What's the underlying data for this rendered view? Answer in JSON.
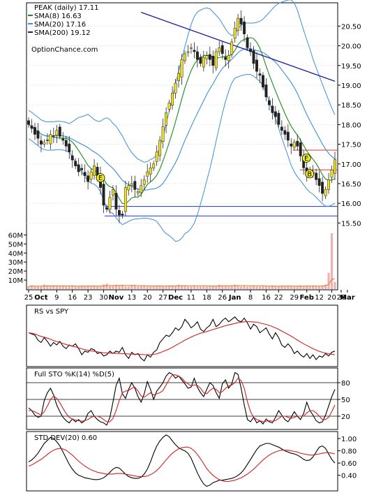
{
  "colors": {
    "sma8": "#1a8c1a",
    "sma20": "#3a8fd9",
    "sma200": "#1a1a9c",
    "upper_band": "#f0e030",
    "candle_up": "#f0e020",
    "candle_down": "#222222",
    "volume": "#f0b0b0",
    "red_line": "#d42020",
    "support": "#2233cc",
    "resistance": "#e03030",
    "earnings": "#f3f01a",
    "price_grid": "#000000"
  },
  "chart_data": [
    {
      "type": "candlestick",
      "title": "PEAK (daily) 17.11",
      "watermark": "OptionChance.com",
      "legend": [
        {
          "label": "SMA(8) 16.63",
          "color": "#1a8c1a"
        },
        {
          "label": "SMA(20) 17.16",
          "color": "#3a8fd9"
        },
        {
          "label": "SMA(200) 19.12",
          "color": "#1a1a9c"
        }
      ],
      "legend_position": "top-left",
      "ylim": [
        15.4,
        20.95
      ],
      "yticks": [
        "15.50",
        "16.00",
        "16.50",
        "17.00",
        "17.50",
        "18.00",
        "18.50",
        "19.00",
        "19.50",
        "20.00",
        "20.50"
      ],
      "close": [
        18.0,
        17.9,
        17.75,
        17.65,
        17.5,
        17.55,
        17.6,
        17.75,
        17.7,
        17.85,
        17.7,
        17.6,
        17.45,
        17.3,
        17.1,
        16.95,
        16.8,
        16.85,
        16.7,
        16.55,
        16.8,
        16.95,
        16.7,
        16.4,
        15.95,
        15.85,
        16.15,
        16.35,
        15.85,
        15.7,
        15.7,
        16.4,
        16.45,
        16.5,
        16.35,
        16.3,
        16.45,
        16.6,
        16.8,
        16.9,
        17.0,
        17.3,
        17.6,
        17.95,
        18.3,
        18.55,
        18.8,
        19.05,
        19.3,
        19.65,
        19.8,
        19.85,
        19.95,
        19.85,
        19.65,
        19.55,
        19.7,
        19.75,
        19.65,
        19.5,
        19.85,
        19.95,
        19.8,
        19.65,
        19.75,
        20.1,
        20.45,
        20.7,
        20.55,
        20.3,
        19.95,
        19.85,
        19.55,
        19.35,
        19.25,
        18.95,
        18.7,
        18.5,
        18.3,
        18.2,
        18.0,
        17.85,
        17.75,
        17.6,
        17.45,
        17.55,
        17.45,
        17.2,
        16.9,
        16.75,
        16.85,
        16.8,
        16.6,
        16.45,
        16.25,
        16.35,
        16.6,
        16.85,
        17.11
      ],
      "sma200_range": [
        20.85,
        19.1
      ],
      "support_lines": [
        15.92,
        15.68
      ],
      "resistance_lines": [
        17.35,
        16.85
      ],
      "earnings_markers": [
        {
          "label": "E"
        },
        {
          "label": "E"
        },
        {
          "label": "B"
        }
      ]
    },
    {
      "type": "bar",
      "title": "",
      "series_name": "volume",
      "yticks": [
        "60M",
        "50M",
        "40M",
        "30M",
        "20M",
        "10M"
      ],
      "ylim": [
        0,
        65
      ],
      "values": [
        3,
        4,
        3,
        3,
        3,
        5,
        4,
        3,
        4,
        3,
        3,
        4,
        3,
        3,
        4,
        3,
        3,
        4,
        3,
        4,
        3,
        4,
        3,
        3,
        5,
        6,
        4,
        4,
        5,
        4,
        4,
        3,
        3,
        4,
        4,
        3,
        4,
        4,
        3,
        3,
        3,
        4,
        4,
        3,
        3,
        4,
        4,
        3,
        5,
        4,
        4,
        3,
        3,
        4,
        3,
        3,
        4,
        3,
        3,
        4,
        3,
        5,
        4,
        4,
        3,
        4,
        5,
        4,
        3,
        4,
        3,
        3,
        4,
        3,
        3,
        4,
        3,
        3,
        4,
        3,
        3,
        4,
        3,
        4,
        3,
        3,
        3,
        4,
        3,
        4,
        3,
        4,
        3,
        3,
        4,
        5,
        18,
        62,
        8
      ]
    },
    {
      "type": "line",
      "title": "RS vs SPY",
      "series_name": "RS",
      "values": [
        0.3,
        0.25,
        0.2,
        0.0,
        -0.1,
        0.1,
        -0.05,
        -0.25,
        -0.1,
        -0.2,
        -0.05,
        -0.25,
        -0.35,
        -0.2,
        -0.25,
        -0.15,
        -0.35,
        -0.6,
        -0.45,
        -0.5,
        -0.35,
        -0.4,
        -0.55,
        -0.5,
        -0.65,
        -0.6,
        -0.45,
        -0.55,
        -0.45,
        -0.5,
        -0.3,
        -0.6,
        -0.75,
        -0.5,
        -0.6,
        -0.55,
        -0.75,
        -0.85,
        -0.6,
        -0.7,
        -0.5,
        -0.4,
        -0.1,
        0.05,
        0.2,
        0.15,
        0.3,
        0.5,
        0.4,
        0.55,
        0.85,
        0.7,
        0.5,
        0.6,
        0.75,
        0.45,
        0.35,
        0.5,
        0.6,
        0.85,
        0.55,
        0.65,
        0.8,
        0.9,
        0.75,
        0.85,
        0.95,
        0.8,
        0.75,
        0.9,
        0.7,
        0.45,
        0.65,
        0.55,
        0.3,
        0.4,
        0.5,
        0.25,
        0.05,
        0.3,
        0.1,
        -0.2,
        -0.3,
        -0.15,
        -0.3,
        -0.55,
        -0.45,
        -0.6,
        -0.7,
        -0.55,
        -0.75,
        -0.6,
        -0.8,
        -0.65,
        -0.7,
        -0.55,
        -0.65,
        -0.5,
        -0.45
      ],
      "signal": [
        0.3,
        0.28,
        0.25,
        0.2,
        0.15,
        0.12,
        0.08,
        0.03,
        -0.02,
        -0.06,
        -0.1,
        -0.14,
        -0.18,
        -0.22,
        -0.25,
        -0.28,
        -0.32,
        -0.36,
        -0.39,
        -0.42,
        -0.44,
        -0.46,
        -0.48,
        -0.5,
        -0.52,
        -0.53,
        -0.53,
        -0.54,
        -0.54,
        -0.55,
        -0.55,
        -0.56,
        -0.57,
        -0.58,
        -0.58,
        -0.58,
        -0.59,
        -0.6,
        -0.6,
        -0.6,
        -0.59,
        -0.56,
        -0.52,
        -0.47,
        -0.42,
        -0.36,
        -0.3,
        -0.22,
        -0.15,
        -0.08,
        0.0,
        0.06,
        0.12,
        0.18,
        0.23,
        0.28,
        0.31,
        0.35,
        0.39,
        0.43,
        0.47,
        0.51,
        0.55,
        0.59,
        0.62,
        0.65,
        0.68,
        0.71,
        0.73,
        0.75,
        0.76,
        0.75,
        0.74,
        0.73,
        0.7,
        0.67,
        0.64,
        0.6,
        0.55,
        0.5,
        0.44,
        0.37,
        0.3,
        0.23,
        0.16,
        0.08,
        0.0,
        -0.08,
        -0.15,
        -0.22,
        -0.29,
        -0.35,
        -0.41,
        -0.46,
        -0.5,
        -0.53,
        -0.56,
        -0.58,
        -0.6
      ],
      "ylim": [
        -1.0,
        1.0
      ]
    },
    {
      "type": "line",
      "title": "Full STO %K(14) %D(5)",
      "yticks": [
        "80",
        "50",
        "20"
      ],
      "ylim": [
        0,
        100
      ],
      "k": [
        35,
        30,
        22,
        18,
        20,
        48,
        62,
        70,
        58,
        40,
        28,
        18,
        12,
        8,
        15,
        10,
        14,
        8,
        12,
        25,
        30,
        20,
        14,
        10,
        8,
        4,
        18,
        45,
        75,
        88,
        60,
        52,
        68,
        80,
        70,
        55,
        45,
        60,
        82,
        68,
        50,
        65,
        72,
        80,
        92,
        98,
        95,
        88,
        92,
        85,
        78,
        70,
        72,
        88,
        72,
        62,
        55,
        68,
        80,
        75,
        62,
        52,
        78,
        85,
        70,
        78,
        98,
        95,
        70,
        40,
        14,
        10,
        18,
        8,
        12,
        6,
        15,
        10,
        8,
        18,
        30,
        22,
        14,
        10,
        18,
        28,
        20,
        14,
        25,
        45,
        30,
        22,
        12,
        8,
        10,
        22,
        38,
        55,
        68
      ],
      "d": [
        30,
        30,
        28,
        25,
        22,
        28,
        38,
        50,
        56,
        52,
        44,
        34,
        25,
        18,
        15,
        13,
        12,
        11,
        12,
        14,
        18,
        20,
        20,
        18,
        14,
        10,
        10,
        16,
        30,
        48,
        62,
        65,
        66,
        70,
        72,
        65,
        56,
        54,
        58,
        62,
        58,
        60,
        62,
        66,
        76,
        86,
        94,
        94,
        92,
        88,
        82,
        78,
        74,
        76,
        75,
        70,
        62,
        60,
        66,
        70,
        68,
        62,
        64,
        70,
        74,
        76,
        80,
        88,
        84,
        70,
        46,
        28,
        18,
        14,
        12,
        10,
        11,
        12,
        11,
        12,
        16,
        20,
        20,
        18,
        16,
        18,
        20,
        20,
        20,
        26,
        30,
        30,
        26,
        20,
        14,
        14,
        18,
        28,
        40
      ]
    },
    {
      "type": "line",
      "title": "STD DEV(20) 0.60",
      "yticks": [
        "1.00",
        "0.80",
        "0.60",
        "0.40"
      ],
      "ylim": [
        0.18,
        1.08
      ],
      "values": [
        0.62,
        0.65,
        0.7,
        0.76,
        0.84,
        0.92,
        0.97,
        1.02,
        1.0,
        0.95,
        0.88,
        0.78,
        0.68,
        0.58,
        0.5,
        0.44,
        0.4,
        0.38,
        0.36,
        0.35,
        0.34,
        0.33,
        0.33,
        0.34,
        0.36,
        0.4,
        0.45,
        0.5,
        0.53,
        0.52,
        0.47,
        0.42,
        0.38,
        0.36,
        0.35,
        0.35,
        0.37,
        0.42,
        0.5,
        0.62,
        0.76,
        0.88,
        0.96,
        1.02,
        1.06,
        1.03,
        0.96,
        0.9,
        0.85,
        0.82,
        0.8,
        0.76,
        0.68,
        0.56,
        0.44,
        0.34,
        0.26,
        0.22,
        0.24,
        0.28,
        0.3,
        0.32,
        0.32,
        0.33,
        0.34,
        0.35,
        0.37,
        0.4,
        0.44,
        0.5,
        0.58,
        0.66,
        0.74,
        0.82,
        0.88,
        0.9,
        0.92,
        0.92,
        0.9,
        0.88,
        0.86,
        0.83,
        0.8,
        0.78,
        0.76,
        0.75,
        0.73,
        0.7,
        0.66,
        0.64,
        0.65,
        0.7,
        0.78,
        0.86,
        0.88,
        0.84,
        0.75,
        0.66,
        0.6
      ],
      "signal": [
        0.55,
        0.57,
        0.6,
        0.63,
        0.66,
        0.7,
        0.74,
        0.78,
        0.81,
        0.83,
        0.84,
        0.83,
        0.81,
        0.77,
        0.73,
        0.68,
        0.63,
        0.59,
        0.55,
        0.52,
        0.49,
        0.47,
        0.45,
        0.44,
        0.43,
        0.42,
        0.42,
        0.42,
        0.43,
        0.43,
        0.43,
        0.42,
        0.41,
        0.4,
        0.39,
        0.38,
        0.38,
        0.38,
        0.39,
        0.41,
        0.44,
        0.48,
        0.53,
        0.59,
        0.65,
        0.71,
        0.76,
        0.8,
        0.83,
        0.85,
        0.86,
        0.86,
        0.84,
        0.8,
        0.74,
        0.67,
        0.59,
        0.51,
        0.45,
        0.4,
        0.36,
        0.33,
        0.31,
        0.3,
        0.3,
        0.31,
        0.32,
        0.34,
        0.36,
        0.39,
        0.42,
        0.46,
        0.5,
        0.55,
        0.6,
        0.65,
        0.69,
        0.73,
        0.76,
        0.78,
        0.8,
        0.81,
        0.81,
        0.81,
        0.8,
        0.79,
        0.78,
        0.76,
        0.75,
        0.74,
        0.73,
        0.73,
        0.74,
        0.75,
        0.76,
        0.77,
        0.77,
        0.76,
        0.75
      ]
    }
  ],
  "x_axis": {
    "labels": [
      "25",
      "Oct",
      "9",
      "16",
      "23",
      "30",
      "Nov",
      "13",
      "20",
      "27",
      "Dec",
      "11",
      "18",
      "26",
      "Jan",
      "8",
      "16",
      "22",
      "29",
      "Feb",
      "12",
      "20",
      "26",
      "Mar"
    ],
    "bold": [
      "Oct",
      "Nov",
      "Dec",
      "Jan",
      "Feb",
      "Mar"
    ],
    "index": [
      0,
      4,
      9,
      14,
      19,
      24,
      28,
      33,
      38,
      43,
      47,
      52,
      57,
      62,
      66,
      71,
      76,
      80,
      85,
      89,
      93,
      97,
      100,
      102
    ]
  }
}
